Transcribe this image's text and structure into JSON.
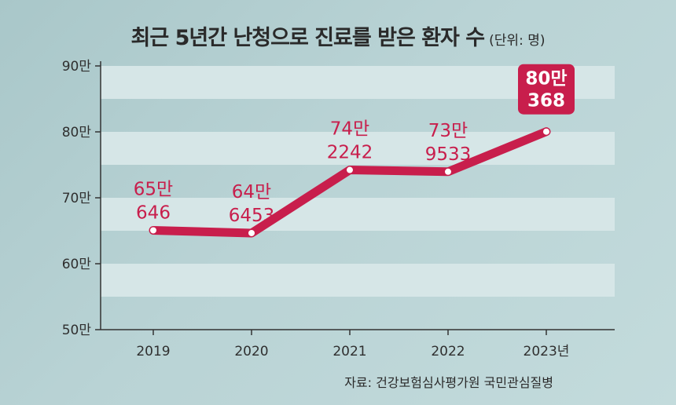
{
  "title": "최근 5년간 난청으로 진료를 받은 환자 수",
  "unit_note": "(단위: 명)",
  "source": "자료: 건강보험심사평가원 국민관심질병",
  "colors": {
    "line": "#c81e4c",
    "highlight_box": "#c81e4c",
    "band": "#d6e6e7"
  },
  "chart_data": {
    "type": "line",
    "title": "최근 5년간 난청으로 진료를 받은 환자 수",
    "xlabel": "",
    "ylabel": "",
    "categories": [
      "2019",
      "2020",
      "2021",
      "2022",
      "2023"
    ],
    "x_tick_labels": [
      "2019",
      "2020",
      "2021",
      "2022",
      "2023년"
    ],
    "values": [
      650646,
      646453,
      742242,
      739533,
      800368
    ],
    "data_labels": [
      [
        "65만",
        "646"
      ],
      [
        "64만",
        "6453"
      ],
      [
        "74만",
        "2242"
      ],
      [
        "73만",
        "9533"
      ],
      [
        "80만",
        "368"
      ]
    ],
    "ylim": [
      500000,
      900000
    ],
    "yticks": [
      500000,
      600000,
      700000,
      800000,
      900000
    ],
    "y_tick_labels": [
      "50만",
      "60만",
      "70만",
      "80만",
      "90만"
    ],
    "highlight_last": true,
    "grid": "horizontal bands"
  }
}
